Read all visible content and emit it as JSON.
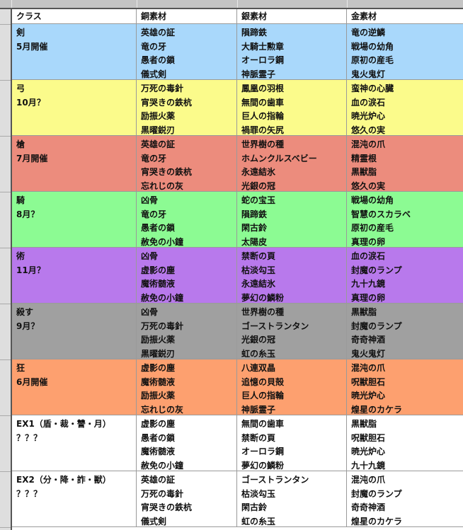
{
  "header": [
    "クラス",
    "銅素材",
    "銀素材",
    "金素材"
  ],
  "rows": [
    {
      "cls": [
        "剣",
        "5月開催"
      ],
      "color": "#a9d8fb",
      "bronze": [
        "英雄の証",
        "竜の牙",
        "愚者の鎖",
        "儀式剣"
      ],
      "silver": [
        "隕蹄鉄",
        "大騎士勲章",
        "オーロラ鋼",
        "神脈霊子"
      ],
      "gold": [
        "竜の逆鱗",
        "戦場の幼角",
        "原初の産毛",
        "鬼火鬼灯"
      ]
    },
    {
      "cls": [
        "弓",
        "10月？"
      ],
      "color": "#fbfb8b",
      "bronze": [
        "万死の毒針",
        "宵哭きの鉄杭",
        "励振火薬",
        "黒曜鋭刃"
      ],
      "silver": [
        "鳳凰の羽根",
        "無間の歯車",
        "巨人の指輪",
        "禍罪の矢尻"
      ],
      "gold": [
        "蛮神の心臓",
        "血の涙石",
        "暁光炉心",
        "悠久の実"
      ]
    },
    {
      "cls": [
        "槍",
        "7月開催"
      ],
      "color": "#ec8c7d",
      "bronze": [
        "英雄の証",
        "竜の牙",
        "宵哭きの鉄杭",
        "忘れじの灰"
      ],
      "silver": [
        "世界樹の種",
        "ホムンクルスベビー",
        "永遠結氷",
        "光銀の冠"
      ],
      "gold": [
        "混沌の爪",
        "精霊根",
        "黒獣脂",
        "悠久の実"
      ]
    },
    {
      "cls": [
        "騎",
        "8月？"
      ],
      "color": "#8cfb93",
      "bronze": [
        "凶骨",
        "竜の牙",
        "愚者の鎖",
        "赦免の小鐘"
      ],
      "silver": [
        "蛇の宝玉",
        "隕蹄鉄",
        "閑古鈴",
        "太陽皮"
      ],
      "gold": [
        "戦場の幼角",
        "智慧のスカラベ",
        "原初の産毛",
        "真理の卵"
      ]
    },
    {
      "cls": [
        "術",
        "11月？"
      ],
      "color": "#b879ec",
      "bronze": [
        "凶骨",
        "虚影の塵",
        "魔術髄液",
        "赦免の小鐘"
      ],
      "silver": [
        "禁断の頁",
        "枯淡勾玉",
        "永遠結氷",
        "夢幻の鱗粉"
      ],
      "gold": [
        "血の涙石",
        "封魔のランプ",
        "九十九鏡",
        "真理の卵"
      ]
    },
    {
      "cls": [
        "殺す",
        "9月？"
      ],
      "color": "#a0a0a0",
      "bronze": [
        "凶骨",
        "万死の毒針",
        "励振火薬",
        "黒曜鋭刃"
      ],
      "silver": [
        "世界樹の種",
        "ゴーストランタン",
        "光銀の冠",
        "虹の糸玉"
      ],
      "gold": [
        "黒獣脂",
        "封魔のランプ",
        "奇奇神酒",
        "鬼火鬼灯"
      ]
    },
    {
      "cls": [
        "狂",
        "6月開催"
      ],
      "color": "#fda06f",
      "bronze": [
        "虚影の塵",
        "魔術髄液",
        "励振火薬",
        "忘れじの灰"
      ],
      "silver": [
        "八連双晶",
        "追憶の貝殻",
        "巨人の指輪",
        "神脈霊子"
      ],
      "gold": [
        "混沌の爪",
        "呪獣胆石",
        "暁光炉心",
        "煌星のカケラ"
      ]
    },
    {
      "cls": [
        "EX1（盾・裁・讐・月）",
        "？？？"
      ],
      "color": "#ffffff",
      "bronze": [
        "虚影の塵",
        "愚者の鎖",
        "魔術髄液",
        "赦免の小鐘"
      ],
      "silver": [
        "無間の歯車",
        "禁断の頁",
        "オーロラ鋼",
        "夢幻の鱗粉"
      ],
      "gold": [
        "黒獣脂",
        "呪獣胆石",
        "暁光炉心",
        "九十九鏡"
      ]
    },
    {
      "cls": [
        "EX2（分・降・詐・獣）",
        "？？？"
      ],
      "color": "#ffffff",
      "bronze": [
        "英雄の証",
        "万死の毒針",
        "宵哭きの鉄杭",
        "儀式剣"
      ],
      "silver": [
        "ゴーストランタン",
        "枯淡勾玉",
        "閑古鈴",
        "虹の糸玉"
      ],
      "gold": [
        "混沌の爪",
        "封魔のランプ",
        "奇奇神酒",
        "煌星のカケラ"
      ]
    }
  ]
}
